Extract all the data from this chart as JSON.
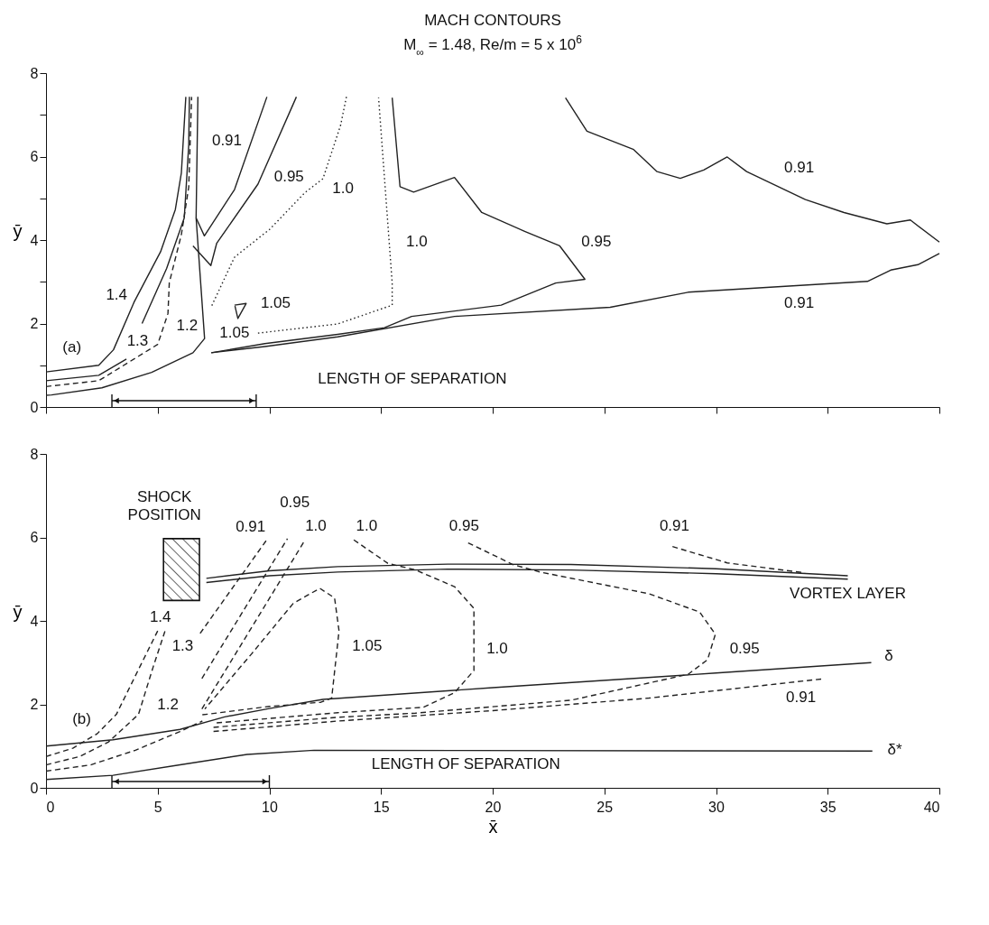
{
  "chart_data": [
    {
      "type": "line",
      "title": "MACH CONTOURS",
      "subtitle": "M$_{∞}$ = 1.48,   Re/m = 5 x 10$^{6}$",
      "ylabel": "ȳ",
      "xlim": [
        0,
        40
      ],
      "ylim": [
        0,
        8
      ],
      "xticks": [
        {
          "value": 0,
          "label": null
        },
        {
          "value": 5,
          "label": null
        },
        {
          "value": 10,
          "label": null
        },
        {
          "value": 15,
          "label": null
        },
        {
          "value": 20,
          "label": null
        },
        {
          "value": 25,
          "label": null
        },
        {
          "value": 30,
          "label": null
        },
        {
          "value": 35,
          "label": null
        },
        {
          "value": 40,
          "label": null
        }
      ],
      "yticks": [
        0,
        {
          "value": 1,
          "label": null
        },
        2,
        {
          "value": 3,
          "label": null
        },
        4,
        {
          "value": 5,
          "label": null
        },
        6,
        {
          "value": 7,
          "label": null
        },
        8
      ],
      "tick_labels": "y",
      "series": [
        {
          "type": "line",
          "line_style": "solid",
          "color": "#222222",
          "x": [
            0,
            2.36,
            3.02,
            3.94,
            5.13,
            5.79,
            6.06,
            6.26
          ],
          "values": [
            0.84,
            1.0,
            1.37,
            2.51,
            3.72,
            4.73,
            5.61,
            7.43
          ]
        },
        {
          "type": "line",
          "line_style": "solid",
          "color": "#222222",
          "x": [
            0,
            2.36,
            3.6
          ],
          "values": [
            0.63,
            0.76,
            1.15
          ]
        },
        {
          "type": "line",
          "line_style": "solid",
          "color": "#222222",
          "x": [
            4.3,
            5.4,
            6.19,
            6.39,
            6.42
          ],
          "values": [
            2.0,
            3.32,
            4.53,
            6.28,
            7.43
          ]
        },
        {
          "type": "line",
          "line_style": "dashed",
          "color": "#222222",
          "x": [
            0,
            2.36,
            5.0,
            5.46,
            5.52,
            6.06,
            6.39,
            6.52
          ],
          "values": [
            0.49,
            0.63,
            1.5,
            2.24,
            2.98,
            4.13,
            5.27,
            7.43
          ]
        },
        {
          "type": "line",
          "line_style": "solid",
          "color": "#222222",
          "x": [
            6.8,
            6.72,
            7.1,
            6.58,
            4.73,
            2.5,
            0.25,
            0
          ],
          "values": [
            7.43,
            4.53,
            1.64,
            1.3,
            0.83,
            0.46,
            0.29,
            0.28
          ]
        },
        {
          "type": "line",
          "line_style": "solid",
          "color": "#222222",
          "x": [
            6.72,
            7.09,
            8.44,
            9.89
          ],
          "values": [
            4.53,
            4.1,
            5.21,
            7.43
          ]
        },
        {
          "type": "line",
          "line_style": "solid",
          "color": "#222222",
          "x": [
            6.58,
            7.38,
            7.64,
            9.49,
            11.21
          ],
          "values": [
            3.86,
            3.39,
            3.92,
            5.34,
            7.43
          ]
        },
        {
          "type": "line",
          "line_style": "dotted",
          "color": "#222222",
          "x": [
            13.45,
            13.19,
            12.4,
            11.6,
            10.02,
            8.44,
            7.38
          ],
          "values": [
            7.43,
            6.75,
            5.47,
            5.14,
            4.26,
            3.59,
            2.38
          ]
        },
        {
          "type": "line",
          "line_style": "dotted",
          "color": "#222222",
          "x": [
            9.49,
            13.06,
            15.5,
            15.5,
            14.89
          ],
          "values": [
            1.77,
            1.99,
            2.44,
            2.97,
            7.41
          ]
        },
        {
          "type": "line",
          "line_style": "solid",
          "color": "#222222",
          "x": [
            15.5,
            15.85,
            16.46,
            18.29,
            19.51,
            21.43,
            23.0,
            24.13,
            22.82,
            20.38,
            16.37,
            15.15,
            13.06,
            9.8,
            7.4
          ],
          "values": [
            7.41,
            5.28,
            5.15,
            5.5,
            4.66,
            4.21,
            3.86,
            3.06,
            2.97,
            2.44,
            2.17,
            1.9,
            1.74,
            1.52,
            1.3
          ]
        },
        {
          "type": "line",
          "line_style": "solid",
          "color": "#222222",
          "x": [
            23.26,
            24.22,
            26.31,
            27.36,
            28.4,
            29.45,
            30.5,
            31.37,
            34.0,
            35.73,
            37.65,
            38.7,
            40.0
          ],
          "values": [
            7.41,
            6.61,
            6.17,
            5.64,
            5.48,
            5.68,
            5.99,
            5.64,
            4.97,
            4.66,
            4.39,
            4.48,
            3.95
          ]
        },
        {
          "type": "line",
          "line_style": "solid",
          "color": "#222222",
          "x": [
            7.4,
            9.8,
            13.06,
            18.29,
            25.26,
            28.75,
            36.78,
            37.82,
            39.04,
            40.0
          ],
          "values": [
            1.3,
            1.45,
            1.68,
            2.17,
            2.39,
            2.75,
            3.01,
            3.28,
            3.41,
            3.68
          ]
        },
        {
          "type": "line",
          "line_style": "solid",
          "color": "#222222",
          "x": [
            8.44,
            8.96,
            8.59,
            8.46
          ],
          "values": [
            2.44,
            2.48,
            2.12,
            2.42
          ]
        }
      ],
      "annotations": [
        "0.91",
        "0.95",
        "1.0",
        "1.0",
        "0.95",
        "0.91",
        "0.91",
        "1.4",
        "1.3",
        "1.2",
        "1.05",
        "1.05",
        "(a)",
        "LENGTH OF SEPARATION"
      ]
    },
    {
      "type": "line",
      "xlabel": "x̄",
      "ylabel": "ȳ",
      "xlim": [
        0,
        40
      ],
      "ylim": [
        0,
        8
      ],
      "xticks": [
        0,
        5,
        10,
        15,
        20,
        25,
        30,
        35,
        40
      ],
      "yticks": [
        0,
        2,
        4,
        6,
        8
      ],
      "series": [
        {
          "type": "line",
          "line_style": "solid",
          "color": "#222222",
          "x": [
            0,
            3,
            6,
            8,
            10,
            12.4,
            20,
            30,
            36.95
          ],
          "values": [
            1.0,
            1.15,
            1.4,
            1.7,
            1.9,
            2.12,
            2.4,
            2.75,
            3.0
          ]
        },
        {
          "type": "line",
          "line_style": "solid",
          "color": "#222222",
          "x": [
            0,
            3,
            6,
            9,
            12,
            37
          ],
          "values": [
            0.2,
            0.3,
            0.55,
            0.8,
            0.9,
            0.88
          ]
        },
        {
          "type": "line",
          "line_style": "solid",
          "color": "#222222",
          "x": [
            7.18,
            10,
            13.06,
            18,
            23.5,
            30,
            35.9
          ],
          "values": [
            5.02,
            5.2,
            5.3,
            5.36,
            5.35,
            5.25,
            5.08
          ]
        },
        {
          "type": "line",
          "line_style": "solid",
          "color": "#222222",
          "x": [
            7.18,
            10,
            13.06,
            18,
            23.5,
            30,
            35.9
          ],
          "values": [
            4.92,
            5.08,
            5.17,
            5.24,
            5.22,
            5.13,
            5.0
          ]
        },
        {
          "type": "line",
          "line_style": "dashed",
          "color": "#222222",
          "x": [
            0,
            1.2,
            2.3,
            3.15,
            4.2,
            5.0
          ],
          "values": [
            0.75,
            0.95,
            1.3,
            1.76,
            2.9,
            3.76
          ]
        },
        {
          "type": "line",
          "line_style": "dashed",
          "color": "#222222",
          "x": [
            0,
            1.5,
            2.8,
            4.14,
            4.8,
            5.33
          ],
          "values": [
            0.55,
            0.75,
            1.1,
            1.76,
            2.9,
            3.76
          ]
        },
        {
          "type": "line",
          "line_style": "dashed",
          "color": "#222222",
          "x": [
            0,
            2,
            4,
            6,
            7
          ],
          "values": [
            0.4,
            0.55,
            0.9,
            1.35,
            1.6
          ]
        },
        {
          "type": "line",
          "line_style": "dashed",
          "color": "#222222",
          "x": [
            6.9,
            9.88
          ],
          "values": [
            3.7,
            5.94
          ]
        },
        {
          "type": "line",
          "line_style": "dashed",
          "color": "#222222",
          "x": [
            6.98,
            10.81
          ],
          "values": [
            2.62,
            5.97
          ]
        },
        {
          "type": "line",
          "line_style": "dashed",
          "color": "#222222",
          "x": [
            6.98,
            11.6
          ],
          "values": [
            1.89,
            5.94
          ]
        },
        {
          "type": "line",
          "line_style": "dashed",
          "color": "#222222",
          "x": [
            7.0,
            10.0,
            12.3,
            12.79,
            13.12,
            12.92,
            12.26,
            11.07,
            9.22,
            7.11
          ],
          "values": [
            1.75,
            1.95,
            2.05,
            2.15,
            3.76,
            4.55,
            4.78,
            4.42,
            3.22,
            1.89
          ]
        },
        {
          "type": "line",
          "line_style": "dashed",
          "color": "#222222",
          "x": [
            13.78,
            15.3,
            16.54,
            18.29,
            19.16,
            19.16,
            18.29,
            16.89,
            13.06,
            7.5
          ],
          "values": [
            5.94,
            5.38,
            5.22,
            4.82,
            4.3,
            2.81,
            2.28,
            1.93,
            1.8,
            1.55
          ]
        },
        {
          "type": "line",
          "line_style": "dashed",
          "color": "#222222",
          "x": [
            18.9,
            20.9,
            22.12,
            27.0,
            29.27,
            29.97,
            29.62,
            28.75,
            23.52,
            16.54,
            13.06,
            7.5
          ],
          "values": [
            5.87,
            5.35,
            5.17,
            4.65,
            4.21,
            3.68,
            3.07,
            2.72,
            2.1,
            1.79,
            1.69,
            1.45
          ]
        },
        {
          "type": "line",
          "line_style": "dashed",
          "color": "#222222",
          "x": [
            28.05,
            30.5,
            33.98
          ],
          "values": [
            5.78,
            5.39,
            5.15
          ]
        },
        {
          "type": "line",
          "line_style": "dashed",
          "color": "#222222",
          "x": [
            7.5,
            13.06,
            20,
            27,
            34.77
          ],
          "values": [
            1.35,
            1.6,
            1.85,
            2.15,
            2.61
          ]
        }
      ],
      "annotations": [
        "SHOCK\nPOSITION",
        "0.91",
        "0.95",
        "1.0",
        "1.0",
        "0.95",
        "0.91",
        "VORTEX LAYER",
        "1.4",
        "1.3",
        "1.2",
        "1.05",
        "1.0",
        "0.95",
        "0.91",
        "δ",
        "δ*",
        "(b)",
        "LENGTH OF SEPARATION"
      ]
    }
  ]
}
